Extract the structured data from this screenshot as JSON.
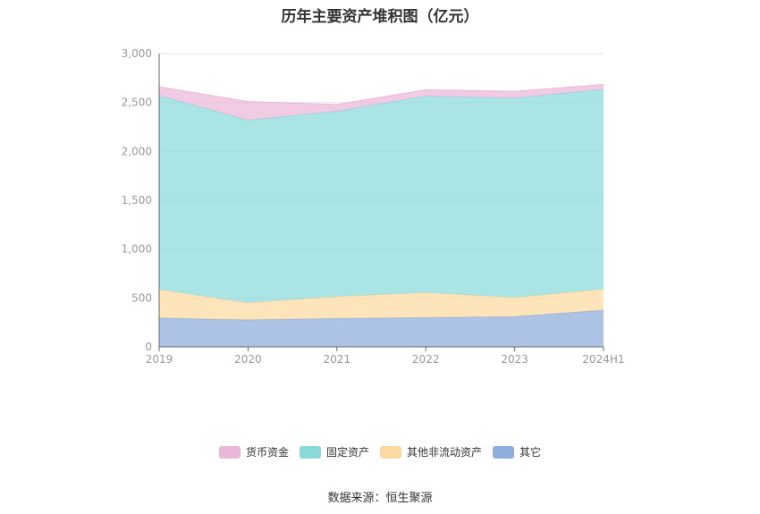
{
  "title": "历年主要资产堆积图（亿元）",
  "source": "数据来源：恒生聚源",
  "chart_data": {
    "type": "area",
    "stacked": true,
    "categories": [
      "2019",
      "2020",
      "2021",
      "2022",
      "2023",
      "2024H1"
    ],
    "ylim": [
      0,
      3000
    ],
    "yticks": [
      0,
      500,
      1000,
      1500,
      2000,
      2500,
      3000
    ],
    "ytick_labels": [
      "0",
      "500",
      "1,000",
      "1,500",
      "2,000",
      "2,500",
      "3,000"
    ],
    "grid": true,
    "legend_position": "bottom",
    "series": [
      {
        "name": "其它",
        "color": "#8eacdd",
        "values": [
          295,
          275,
          290,
          300,
          310,
          375
        ]
      },
      {
        "name": "其他非流动资产",
        "color": "#fcd9a1",
        "values": [
          290,
          175,
          225,
          255,
          195,
          215
        ]
      },
      {
        "name": "固定资产",
        "color": "#8ad9d9",
        "values": [
          1985,
          1870,
          1895,
          2010,
          2040,
          2045
        ]
      },
      {
        "name": "货币资金",
        "color": "#ebb7d8",
        "values": [
          90,
          190,
          70,
          65,
          70,
          50
        ]
      }
    ],
    "legend_order": [
      "货币资金",
      "固定资产",
      "其他非流动资产",
      "其它"
    ]
  }
}
